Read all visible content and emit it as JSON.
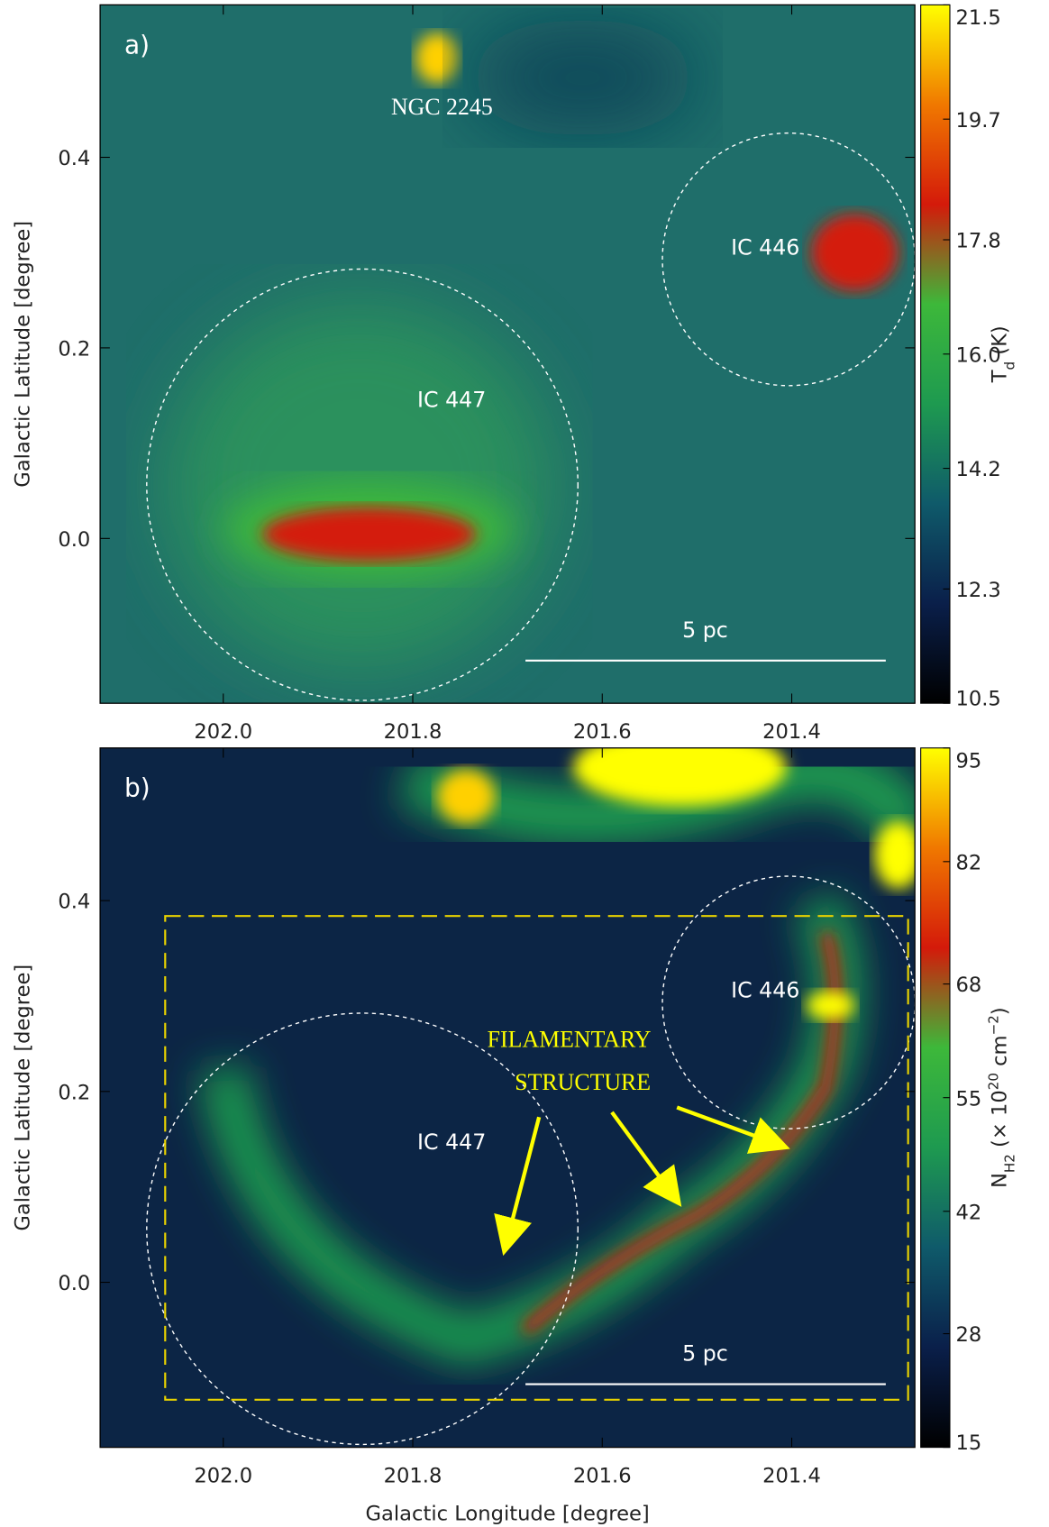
{
  "chart_data": [
    {
      "type": "heatmap",
      "panel_label": "a)",
      "xlim": [
        202.13,
        201.27
      ],
      "xticks": [
        {
          "value": 202.0,
          "label": "202.0"
        },
        201.8,
        201.6,
        201.4
      ],
      "ylim": [
        -0.173,
        0.56
      ],
      "yticks": [
        {
          "value": 0,
          "label": "0.0"
        },
        0.2,
        0.4
      ],
      "ylabel": "Galactic Latitude [degree]",
      "annotations": [
        "NGC 2245",
        "IC 446",
        "IC 447",
        "5 pc"
      ],
      "colorbar": {
        "lim": [
          10.5,
          21.5
        ],
        "ticks": [
          10.5,
          12.3,
          14.2,
          {
            "value": 16,
            "label": "16.0"
          },
          17.8,
          19.7,
          21.5
        ],
        "label_parts": [
          "T",
          "d",
          " (K)"
        ],
        "colormap": [
          "#000000",
          "#0a1f4a",
          "#0f5a6a",
          "#1e9a50",
          "#3db83a",
          "#d41a0a",
          "#f07800",
          "#ffff00"
        ]
      }
    },
    {
      "type": "heatmap",
      "panel_label": "b)",
      "xlim": [
        202.13,
        201.27
      ],
      "xticks": [
        {
          "value": 202.0,
          "label": "202.0"
        },
        201.8,
        201.6,
        201.4
      ],
      "ylim": [
        -0.173,
        0.56
      ],
      "yticks": [
        {
          "value": 0,
          "label": "0.0"
        },
        0.2,
        0.4
      ],
      "xlabel": "Galactic Longitude [degree]",
      "ylabel": "Galactic Latitude [degree]",
      "annotations": [
        "IC 446",
        "IC 447",
        "5 pc",
        "FILAMENTARY",
        "STRUCTURE"
      ],
      "colorbar": {
        "lim": [
          15,
          95
        ],
        "ticks": [
          15,
          28,
          42,
          55,
          68,
          82,
          95
        ],
        "label_parts": [
          "N",
          "H2",
          " (× 10",
          "20",
          " cm",
          "−2",
          ")"
        ],
        "colormap": [
          "#000000",
          "#0a1f4a",
          "#0f5a6a",
          "#1e9a50",
          "#3db83a",
          "#d41a0a",
          "#f07800",
          "#ffff00"
        ]
      }
    }
  ]
}
